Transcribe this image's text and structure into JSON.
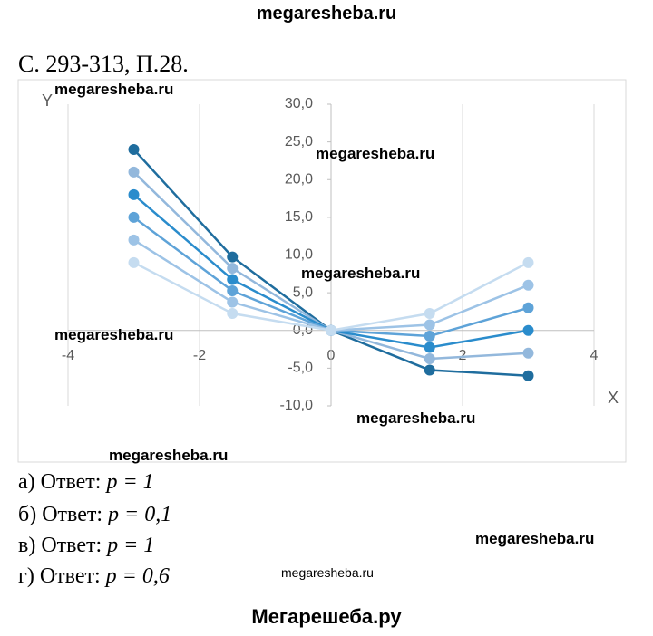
{
  "header": "megaresheba.ru",
  "reference": "С. 293-313, П.28.",
  "watermarks": [
    "megaresheba.ru",
    "megaresheba.ru",
    "megaresheba.ru",
    "megaresheba.ru",
    "megaresheba.ru",
    "megaresheba.ru",
    "megaresheba.ru",
    "megaresheba.ru"
  ],
  "chart_data": {
    "type": "line",
    "xlabel": "X",
    "ylabel": "Y",
    "x": [
      -3,
      -1.5,
      0,
      1.5,
      3
    ],
    "xlim": [
      -4,
      4
    ],
    "xticks": [
      -4,
      -2,
      0,
      2,
      4
    ],
    "ylim": [
      -10,
      30
    ],
    "yticks": [
      {
        "value": -10,
        "label": "-10,0"
      },
      {
        "value": -5,
        "label": "-5,0"
      },
      {
        "value": 0,
        "label": "0,0"
      },
      {
        "value": 5,
        "label": "5,0"
      },
      {
        "value": 10,
        "label": "10,0"
      },
      {
        "value": 15,
        "label": "15,0"
      },
      {
        "value": 20,
        "label": "20,0"
      },
      {
        "value": 25,
        "label": "25,0"
      },
      {
        "value": 30,
        "label": "30,0"
      }
    ],
    "grid": "vertical",
    "series": [
      {
        "color": "#1f6d9e",
        "values": [
          24,
          9.75,
          0,
          -5.25,
          -6
        ]
      },
      {
        "color": "#93b8dc",
        "values": [
          21,
          8.25,
          0,
          -3.75,
          -3
        ]
      },
      {
        "color": "#2a8ccc",
        "values": [
          18,
          6.75,
          0,
          -2.25,
          0
        ]
      },
      {
        "color": "#5ea3d8",
        "values": [
          15,
          5.25,
          0,
          -0.75,
          3
        ]
      },
      {
        "color": "#9dc3e6",
        "values": [
          12,
          3.75,
          0,
          0.75,
          6
        ]
      },
      {
        "color": "#c5dcf0",
        "values": [
          9,
          2.25,
          0,
          2.25,
          9
        ]
      }
    ]
  },
  "answers": [
    {
      "prefix": "а) Ответ:",
      "formula": "p = 1"
    },
    {
      "prefix": "б) Ответ:",
      "formula": "p = 0,1"
    },
    {
      "prefix": "в) Ответ:",
      "formula": "p = 1"
    },
    {
      "prefix": "г) Ответ:",
      "formula": "p = 0,6"
    }
  ],
  "footer": "Мегарешеба.ру"
}
